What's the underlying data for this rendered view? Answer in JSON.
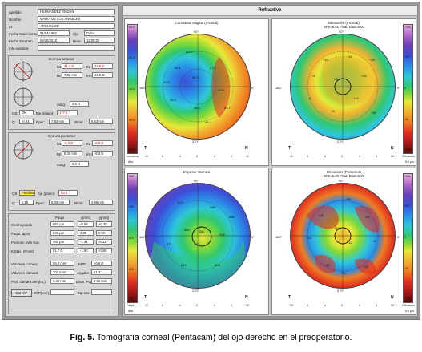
{
  "patient": {
    "apellido_label": "Apellido",
    "apellido": "HERNANDEZ MADAN",
    "nombre_label": "Nombre",
    "nombre": "MARIA DE LOS ANGELES",
    "id_label": "ID",
    "id": "ARCHEL CR",
    "nacimiento_label": "Fecha Nacimiento",
    "nacimiento": "01/04/1962",
    "ojo_label": "Ojo",
    "ojo": "Dcho.",
    "examen_label": "Fecha Examen",
    "examen": "02/26/2018",
    "hora_label": "Hora",
    "hora": "12:05:00",
    "info_label": "Info examen:",
    "info": ""
  },
  "anterior": {
    "title": "Cornea anterior",
    "k1_label": "K1",
    "k1_val": "41.4 D",
    "k1_color": "#d00000",
    "k2_label": "K2",
    "k2_val": "43.9 D",
    "k2_color": "#d00000",
    "km_label": "Km",
    "km_val": "42.6 D",
    "rm_label": "Rm",
    "rm_val": "7.92 mm",
    "qs_label": "QS:",
    "qs_val": "OK",
    "eje_label": "Eje (plano):",
    "eje_val": "177.5 °",
    "q_label": "Q:",
    "q_val": "-0.24",
    "astig_label": "Astig:",
    "astig_val": "2.5 D",
    "rper_label": "Rper:",
    "rper_val": "7.92 mm",
    "rmin_label": "Rmin:",
    "rmin_val": "6.53 mm"
  },
  "posterior": {
    "title": "Cornea posterior",
    "k1_label": "K1",
    "k1_val": "-6.2 D",
    "k2_label": "K2",
    "k2_val": "-6.5 D",
    "km_label": "Km",
    "km_val": "-6.3 D",
    "rm_label": "Rm",
    "rm_val": "6.30 mm",
    "qs_label": "QS:",
    "qs_val": "Pendiente",
    "eje_label": "Eje (plano):",
    "eje_val": "93.4 °",
    "q_label": "Q:",
    "q_val": "0.18",
    "astig_label": "Astig:",
    "astig_val": "0.3 D",
    "rper_label": "Rper:",
    "rper_val": "6.30 mm",
    "rmin_label": "Rmin:",
    "rmin_val": "4.98 mm"
  },
  "pachy": {
    "header_pachy": "Paqui",
    "header_x": "x[mm]",
    "header_y": "y[mm]",
    "rows": [
      {
        "label": "Centro pupila",
        "value": "560 µm",
        "x": "-0.08",
        "y": "+0.20"
      },
      {
        "label": "Paqui. ápex:",
        "value": "536 µm",
        "x": "0.00",
        "y": "0.00"
      },
      {
        "label": "Posición más fina:",
        "value": "492 µm",
        "x": "-1.34",
        "y": "-0.32"
      },
      {
        "label": "K Max. (Front):",
        "value": "51.7 D",
        "x": "-1.90",
        "y": "-0.48"
      }
    ]
  },
  "chamber": {
    "vol_corneal_label": "Volumen cornea:",
    "vol_corneal": "56.4 mm³",
    "kpd_label": "KPD:",
    "kpd": "+0.6 D",
    "vol_camara_label": "Volumen cámara:",
    "vol_camara": "202 mm³",
    "angulo_label": "Ángulo:",
    "angulo": "41.3 °",
    "prof_label": "Prof. cámara ant (Int.):",
    "prof": "3.30 mm",
    "diam_label": "Diam. Pupil:",
    "diam": "2.92 mm",
    "iop_button": "Dat IOP",
    "iop_label": "IOP(corr):",
    "iop": "",
    "eq_label": "Eq. cnt.:",
    "eq": ""
  },
  "refractive": {
    "title": "Refractive",
    "maps": [
      {
        "title": "Curvatura Sagital (Frontal)",
        "subtitle": "",
        "scale_left": [
          "66.0",
          "62.0",
          "58.0",
          "54.0",
          "52.0",
          "50.0",
          "48.0",
          "47.0",
          "46.0",
          "45.0",
          "44.0",
          "43.0",
          "42.0",
          "41.0",
          "40.0",
          "39.0",
          "38.0",
          "36.0",
          "34.0",
          "32.0",
          "30.0"
        ],
        "foot_left": "curvatura",
        "corner_left": "T",
        "corner_right": "N",
        "deg_top": "90°",
        "deg_bottom": "270°",
        "deg_left": "180°",
        "deg_right": "0°",
        "scale_ticks": [
          "12",
          "8",
          "4",
          "0",
          "4",
          "8",
          "12"
        ],
        "values": [
          "42.1",
          "44.3",
          "47.2",
          "49.8",
          "51.7",
          "46.0",
          "43.5",
          "45.9",
          "48.4",
          "40.8"
        ],
        "units_left": "Abs"
      },
      {
        "title": "Elevación (Frontal)",
        "subtitle": "BFS=8.01 Float, Diam:8.00",
        "scale_right": [
          "+100",
          "+80",
          "+60",
          "+50",
          "+40",
          "+30",
          "+25",
          "+20",
          "+15",
          "+10",
          "+5",
          "0",
          "-5",
          "-10",
          "-15",
          "-20",
          "-25",
          "-30",
          "-40",
          "-50",
          "-60",
          "-80",
          "-100"
        ],
        "foot_right": "Elevación",
        "corner_left": "T",
        "corner_right": "N",
        "deg_top": "90°",
        "deg_bottom": "270°",
        "deg_left": "180°",
        "deg_right": "0°",
        "scale_ticks": [
          "12",
          "8",
          "4",
          "0",
          "4",
          "8",
          "12"
        ],
        "values": [
          "+10",
          "+15",
          "+20",
          "+5",
          "-5",
          "+12",
          "+8",
          "+25",
          "+16",
          "+4"
        ],
        "units_right": "5.0 µm"
      },
      {
        "title": "Espesor Cornea",
        "subtitle": "",
        "scale_left": [
          "900",
          "850",
          "800",
          "760",
          "720",
          "680",
          "650",
          "630",
          "610",
          "590",
          "570",
          "550",
          "530",
          "510",
          "490",
          "470",
          "450",
          "420",
          "390",
          "350",
          "300"
        ],
        "foot_left": "Paqui.",
        "corner_left": "T",
        "corner_right": "N",
        "deg_top": "90°",
        "deg_bottom": "270°",
        "deg_left": "180°",
        "deg_right": "0°",
        "scale_ticks": [
          "12",
          "8",
          "4",
          "0",
          "4",
          "8",
          "12"
        ],
        "values": [
          "612",
          "588",
          "560",
          "536",
          "492",
          "524",
          "571",
          "603",
          "549",
          "598"
        ],
        "units_left": "Abs"
      },
      {
        "title": "Elevación (Posterior)",
        "subtitle": "BFS=6.30 Float, Diam:8.00",
        "scale_right": [
          "+100",
          "+80",
          "+60",
          "+50",
          "+40",
          "+30",
          "+25",
          "+20",
          "+15",
          "+10",
          "+5",
          "0",
          "-5",
          "-10",
          "-15",
          "-20",
          "-25",
          "-30",
          "-40",
          "-50",
          "-60",
          "-80",
          "-100"
        ],
        "foot_right": "Elevación",
        "corner_left": "T",
        "corner_right": "N",
        "deg_top": "90°",
        "deg_bottom": "270°",
        "deg_left": "180°",
        "deg_right": "0°",
        "scale_ticks": [
          "12",
          "8",
          "4",
          "0",
          "4",
          "8",
          "12"
        ],
        "values": [
          "+25",
          "+30",
          "+18",
          "+40",
          "+12",
          "-10",
          "+22",
          "+35",
          "+8",
          "+15"
        ],
        "units_right": "5.0 µm"
      }
    ]
  },
  "caption": {
    "label": "Fig. 5.",
    "text": " Tomografía corneal (Pentacam) del ojo derecho en el  preoperatorio."
  }
}
